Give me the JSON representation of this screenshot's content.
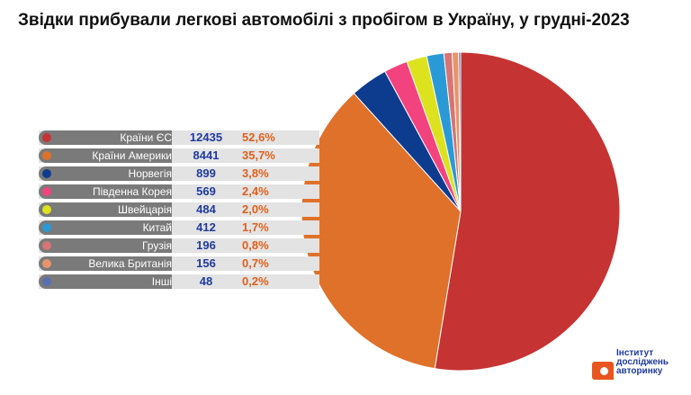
{
  "title": "Звідки прибували легкові автомобілі з пробігом в Україну, у грудні-2023",
  "logo": {
    "line1": "Інститут",
    "line2": "досліджень",
    "line3": "авторинку"
  },
  "chart_data": {
    "type": "pie",
    "title": "Звідки прибували легкові автомобілі з пробігом в Україну, у грудні-2023",
    "slices": [
      {
        "label": "Країни ЄС",
        "value": 12435,
        "percent": "52,6%",
        "color": "#c63333"
      },
      {
        "label": "Країни Америки",
        "value": 8441,
        "percent": "35,7%",
        "color": "#e0712a"
      },
      {
        "label": "Норвегія",
        "value": 899,
        "percent": "3,8%",
        "color": "#0d3c8f"
      },
      {
        "label": "Південна Корея",
        "value": 569,
        "percent": "2,4%",
        "color": "#f2437e"
      },
      {
        "label": "Швейцарія",
        "value": 484,
        "percent": "2,0%",
        "color": "#dde21e"
      },
      {
        "label": "Китай",
        "value": 412,
        "percent": "1,7%",
        "color": "#2a9ad6"
      },
      {
        "label": "Грузія",
        "value": 196,
        "percent": "0,8%",
        "color": "#d77474"
      },
      {
        "label": "Велика Британія",
        "value": 156,
        "percent": "0,7%",
        "color": "#e8946a"
      },
      {
        "label": "Інші",
        "value": 48,
        "percent": "0,2%",
        "color": "#5a6fb0"
      }
    ]
  }
}
